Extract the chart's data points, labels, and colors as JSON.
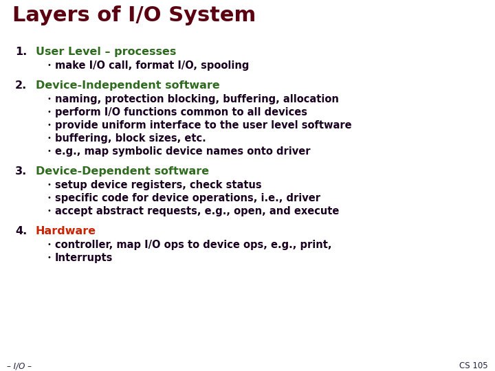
{
  "title": "Layers of I/O System",
  "title_color": "#5B0010",
  "title_fontsize": 22,
  "background_color": "#FFFFFF",
  "heading_color": "#2E6B1E",
  "heading_fontsize": 11.5,
  "bullet_color": "#1A0020",
  "bullet_fontsize": 10.5,
  "number_color": "#1A0020",
  "number_fontsize": 11.5,
  "footer_left": "– I/O –",
  "footer_right": "CS 105",
  "footer_color": "#222244",
  "footer_fontsize": 8.5,
  "sections": [
    {
      "number": "1.",
      "heading": "User Level – processes",
      "heading_color": "#2E6B1E",
      "bullets": [
        "make I/O call, format I/O, spooling"
      ]
    },
    {
      "number": "2.",
      "heading": "Device-Independent software",
      "heading_color": "#2E6B1E",
      "bullets": [
        "naming, protection blocking, buffering, allocation",
        "perform I/O functions common to all devices",
        "provide uniform interface to the user level software",
        "buffering, block sizes, etc.",
        "e.g., map symbolic device names onto driver"
      ]
    },
    {
      "number": "3.",
      "heading": "Device-Dependent software",
      "heading_color": "#2E6B1E",
      "bullets": [
        "setup device registers, check status",
        "specific code for device operations, i.e., driver",
        "accept abstract requests, e.g., open, and execute"
      ]
    },
    {
      "number": "4.",
      "heading": "Hardware",
      "heading_color": "#CC2200",
      "bullets": [
        "controller, map I/O ops to device ops, e.g., print,",
        "Interrupts"
      ]
    }
  ]
}
